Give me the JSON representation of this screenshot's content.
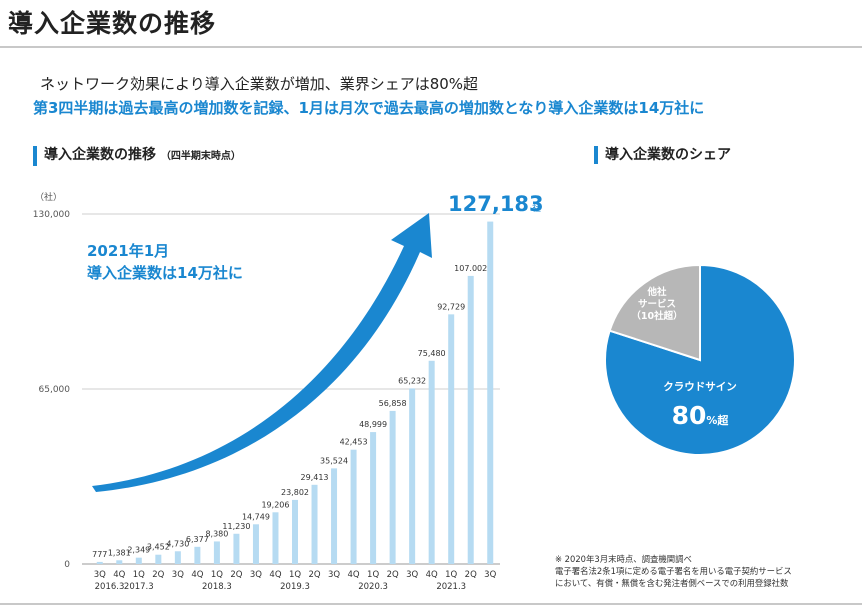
{
  "header": {
    "title": "導入企業数の推移",
    "subtitle1": "ネットワーク効果により導入企業数が増加、業界シェアは80%超",
    "subtitle2": "第3四半期は過去最高の増加数を記録、1月は月次で過去最高の増加数となり導入企業数は14万社に"
  },
  "left_section": {
    "title": "導入企業数の推移",
    "note": "（四半期末時点）"
  },
  "right_section": {
    "title": "導入企業数のシェア"
  },
  "highlight": {
    "total_value": "127,183",
    "total_unit": "社",
    "callout_line1": "2021年1月",
    "callout_line2": "導入企業数は14万社に"
  },
  "colors": {
    "bar": "#b6dbf2",
    "arrow": "#1a87d0",
    "accent": "#1a87d0",
    "pie_other": "#b7b7b7"
  },
  "chart_data": [
    {
      "type": "bar",
      "title": "導入企業数の推移",
      "ylabel": "（社）",
      "ylim": [
        0,
        130000
      ],
      "yticks": [
        0,
        65000,
        130000
      ],
      "ytick_labels": [
        "0",
        "65,000",
        "130,000"
      ],
      "categories": [
        "3Q",
        "4Q",
        "1Q",
        "2Q",
        "3Q",
        "4Q",
        "1Q",
        "2Q",
        "3Q",
        "4Q",
        "1Q",
        "2Q",
        "3Q",
        "4Q",
        "1Q",
        "2Q",
        "3Q",
        "4Q",
        "1Q",
        "2Q",
        "3Q"
      ],
      "period_labels": [
        "2016.3",
        "2017.3",
        "2018.3",
        "2019.3",
        "2020.3",
        "2021.3"
      ],
      "values": [
        777,
        1381,
        2349,
        3452,
        4730,
        6377,
        8380,
        11230,
        14749,
        19206,
        23802,
        29413,
        35524,
        42453,
        48999,
        56858,
        65232,
        75480,
        92729,
        107002,
        127183
      ],
      "value_labels": [
        "777",
        "1,381",
        "2,349",
        "3,452",
        "4,730",
        "6,377",
        "8,380",
        "11,230",
        "14,749",
        "19,206",
        "23,802",
        "29,413",
        "35,524",
        "42,453",
        "48,999",
        "56,858",
        "65,232",
        "75,480",
        "92,729",
        "107.002",
        ""
      ]
    },
    {
      "type": "pie",
      "title": "導入企業数のシェア",
      "slices": [
        {
          "label": "クラウドサイン",
          "value": 80,
          "display": "80",
          "unit": "%超"
        },
        {
          "label_lines": [
            "他社",
            "サービス",
            "（10社超）"
          ],
          "value": 20
        }
      ]
    }
  ],
  "footnote": [
    "※ 2020年3月末時点、調査機関調べ",
    "電子署名法2条1項に定める電子署名を用いる電子契約サービス",
    "において、有償・無償を含む発注者側ベースでの利用登録社数"
  ]
}
